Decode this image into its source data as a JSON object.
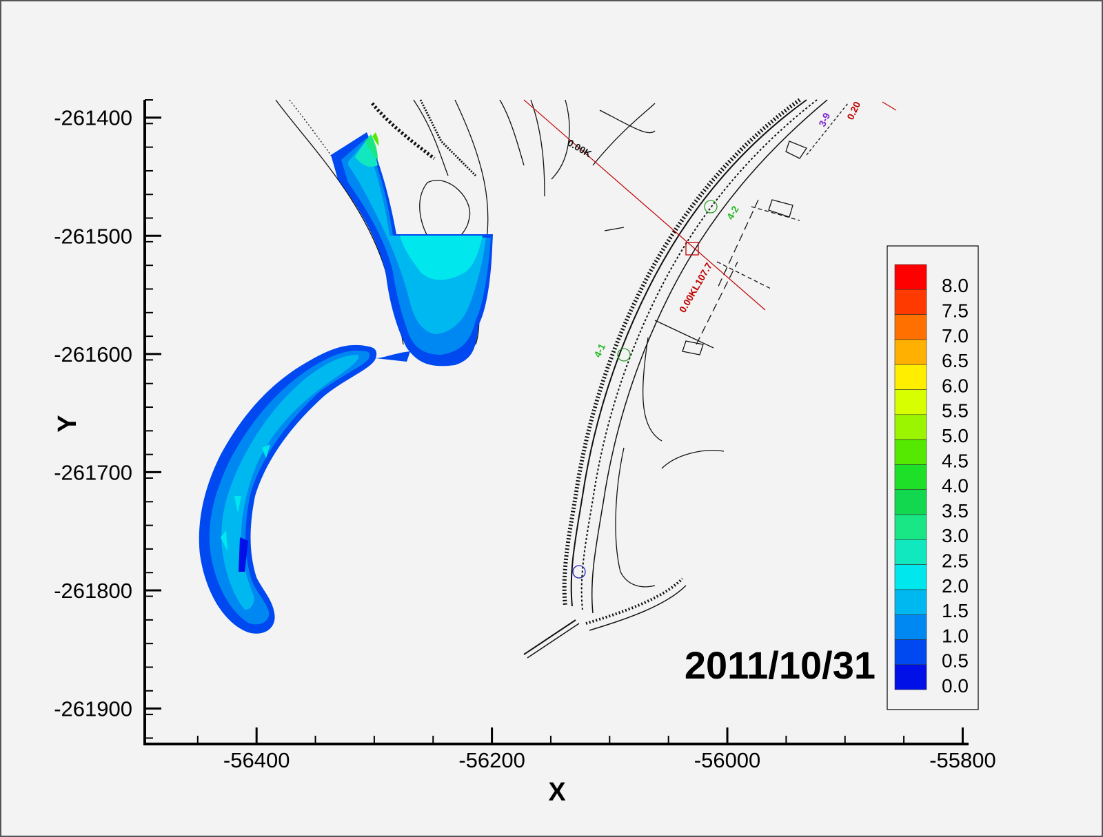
{
  "chart_data": {
    "type": "heatmap",
    "title": "",
    "xlabel": "X",
    "ylabel": "Y",
    "xlim": [
      -56495,
      -55795
    ],
    "ylim": [
      -261930,
      -261385
    ],
    "x_ticks": [
      "-56400",
      "-56200",
      "-56000",
      "-55800"
    ],
    "y_ticks": [
      "-261400",
      "-261500",
      "-261600",
      "-261700",
      "-261800",
      "-261900"
    ],
    "x_tick_values": [
      -56400,
      -56200,
      -56000,
      -55800
    ],
    "y_tick_values": [
      -261400,
      -261500,
      -261600,
      -261700,
      -261800,
      -261900
    ],
    "legend": {
      "position": "right",
      "levels": [
        "8.0",
        "7.5",
        "7.0",
        "6.5",
        "6.0",
        "5.5",
        "5.0",
        "4.5",
        "4.0",
        "3.5",
        "3.0",
        "2.5",
        "2.0",
        "1.5",
        "1.0",
        "0.5",
        "0.0"
      ],
      "colors": [
        "#ff0000",
        "#ff3a00",
        "#ff7000",
        "#ffb000",
        "#ffee00",
        "#d8ff00",
        "#9cf500",
        "#55e800",
        "#1ee028",
        "#12d850",
        "#19e684",
        "#11e8c0",
        "#00e7ee",
        "#00b8f0",
        "#0088f2",
        "#0048f0",
        "#0010e6"
      ]
    },
    "annotation": "2011/10/31",
    "map_labels": [
      "0.00K",
      "0.00KL107.7",
      "4-1",
      "4-2",
      "3-9",
      "0.20"
    ]
  }
}
